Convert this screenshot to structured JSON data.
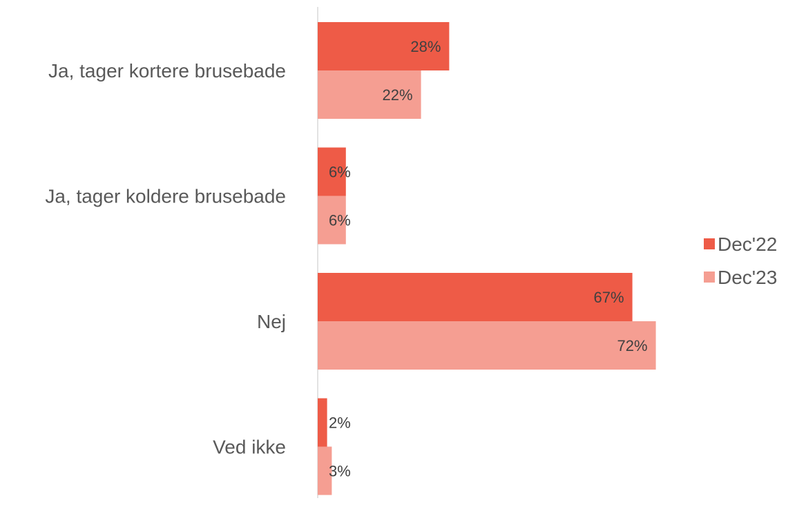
{
  "chart_data": {
    "type": "bar",
    "orientation": "horizontal",
    "categories": [
      "Ja, tager kortere brusebade",
      "Ja, tager koldere brusebade",
      "Nej",
      "Ved ikke"
    ],
    "series": [
      {
        "name": "Dec'22",
        "color": "#EE5B47",
        "values": [
          28,
          6,
          67,
          2
        ],
        "labels": [
          "28%",
          "6%",
          "67%",
          "2%"
        ]
      },
      {
        "name": "Dec'23",
        "color": "#F59E92",
        "values": [
          22,
          6,
          72,
          3
        ],
        "labels": [
          "22%",
          "6%",
          "72%",
          "3%"
        ]
      }
    ],
    "xlim": [
      0,
      100
    ],
    "grid": false,
    "legend_position": "right",
    "title": "",
    "xlabel": "",
    "ylabel": ""
  }
}
